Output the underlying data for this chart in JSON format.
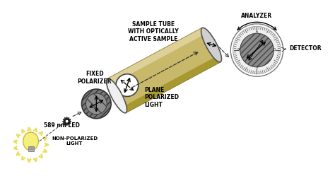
{
  "bg_color": "#ffffff",
  "labels": {
    "led": "589 nm LED",
    "non_pol": "NON-POLARIZED\nLIGHT",
    "fixed_pol": "FIXED\nPOLARIZER",
    "plane_pol": "PLANE\nPOLARIZED\nLIGHT",
    "sample_tube": "SAMPLE TUBE\nWITH OPTICALLY\nACTIVE SAMPLE",
    "analyzer": "ANALYZER",
    "detector": "DETECTOR"
  },
  "colors": {
    "bg": "#ffffff",
    "bulb_yellow": "#f5f07a",
    "bulb_ray": "#e8e060",
    "bulb_base": "#aaaaaa",
    "polarizer_gray": "#808080",
    "polarizer_hatch": "#606060",
    "tube_tan": "#c8b86a",
    "tube_highlight": "#ddd090",
    "tube_dark": "#a8982a",
    "plane_pol_white": "#ffffff",
    "analyzer_outer": "#e0e0e0",
    "analyzer_inner": "#909090",
    "black": "#000000",
    "dark_gray": "#444444",
    "med_gray": "#888888"
  },
  "layout": {
    "xlim": [
      0,
      9.5
    ],
    "ylim": [
      0,
      5.0
    ],
    "figw": 4.74,
    "figh": 2.66,
    "dpi": 100
  }
}
